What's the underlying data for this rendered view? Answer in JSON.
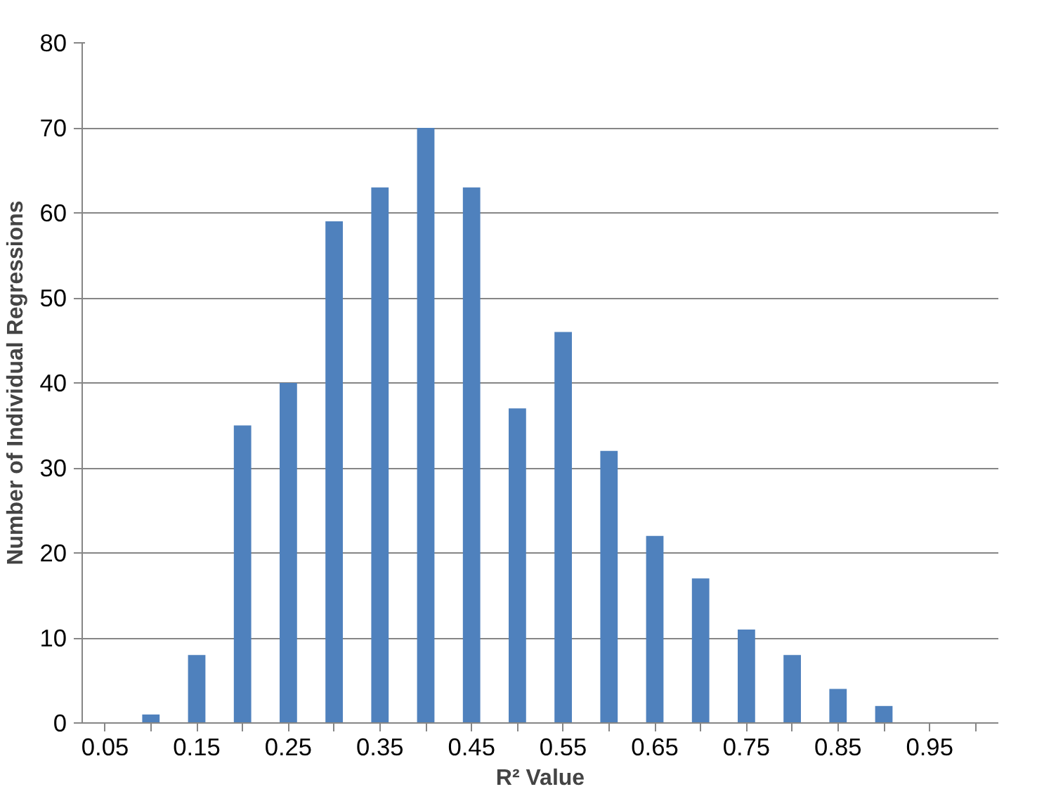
{
  "chart_data": {
    "type": "bar",
    "xlabel": "R² Value",
    "ylabel": "Number of Individual Regressions",
    "categories": [
      "0.05",
      null,
      "0.15",
      null,
      "0.25",
      null,
      "0.35",
      null,
      "0.45",
      null,
      "0.55",
      null,
      "0.65",
      null,
      "0.75",
      null,
      "0.85",
      null,
      "0.95",
      null
    ],
    "values": [
      0,
      1,
      8,
      35,
      40,
      59,
      63,
      70,
      63,
      37,
      46,
      32,
      22,
      17,
      11,
      8,
      4,
      2,
      0,
      0
    ],
    "color": "#4f81bd",
    "ylim": [
      0,
      80
    ],
    "yticks": [
      0,
      10,
      20,
      30,
      40,
      50,
      60,
      70,
      80
    ],
    "grid": "y"
  }
}
